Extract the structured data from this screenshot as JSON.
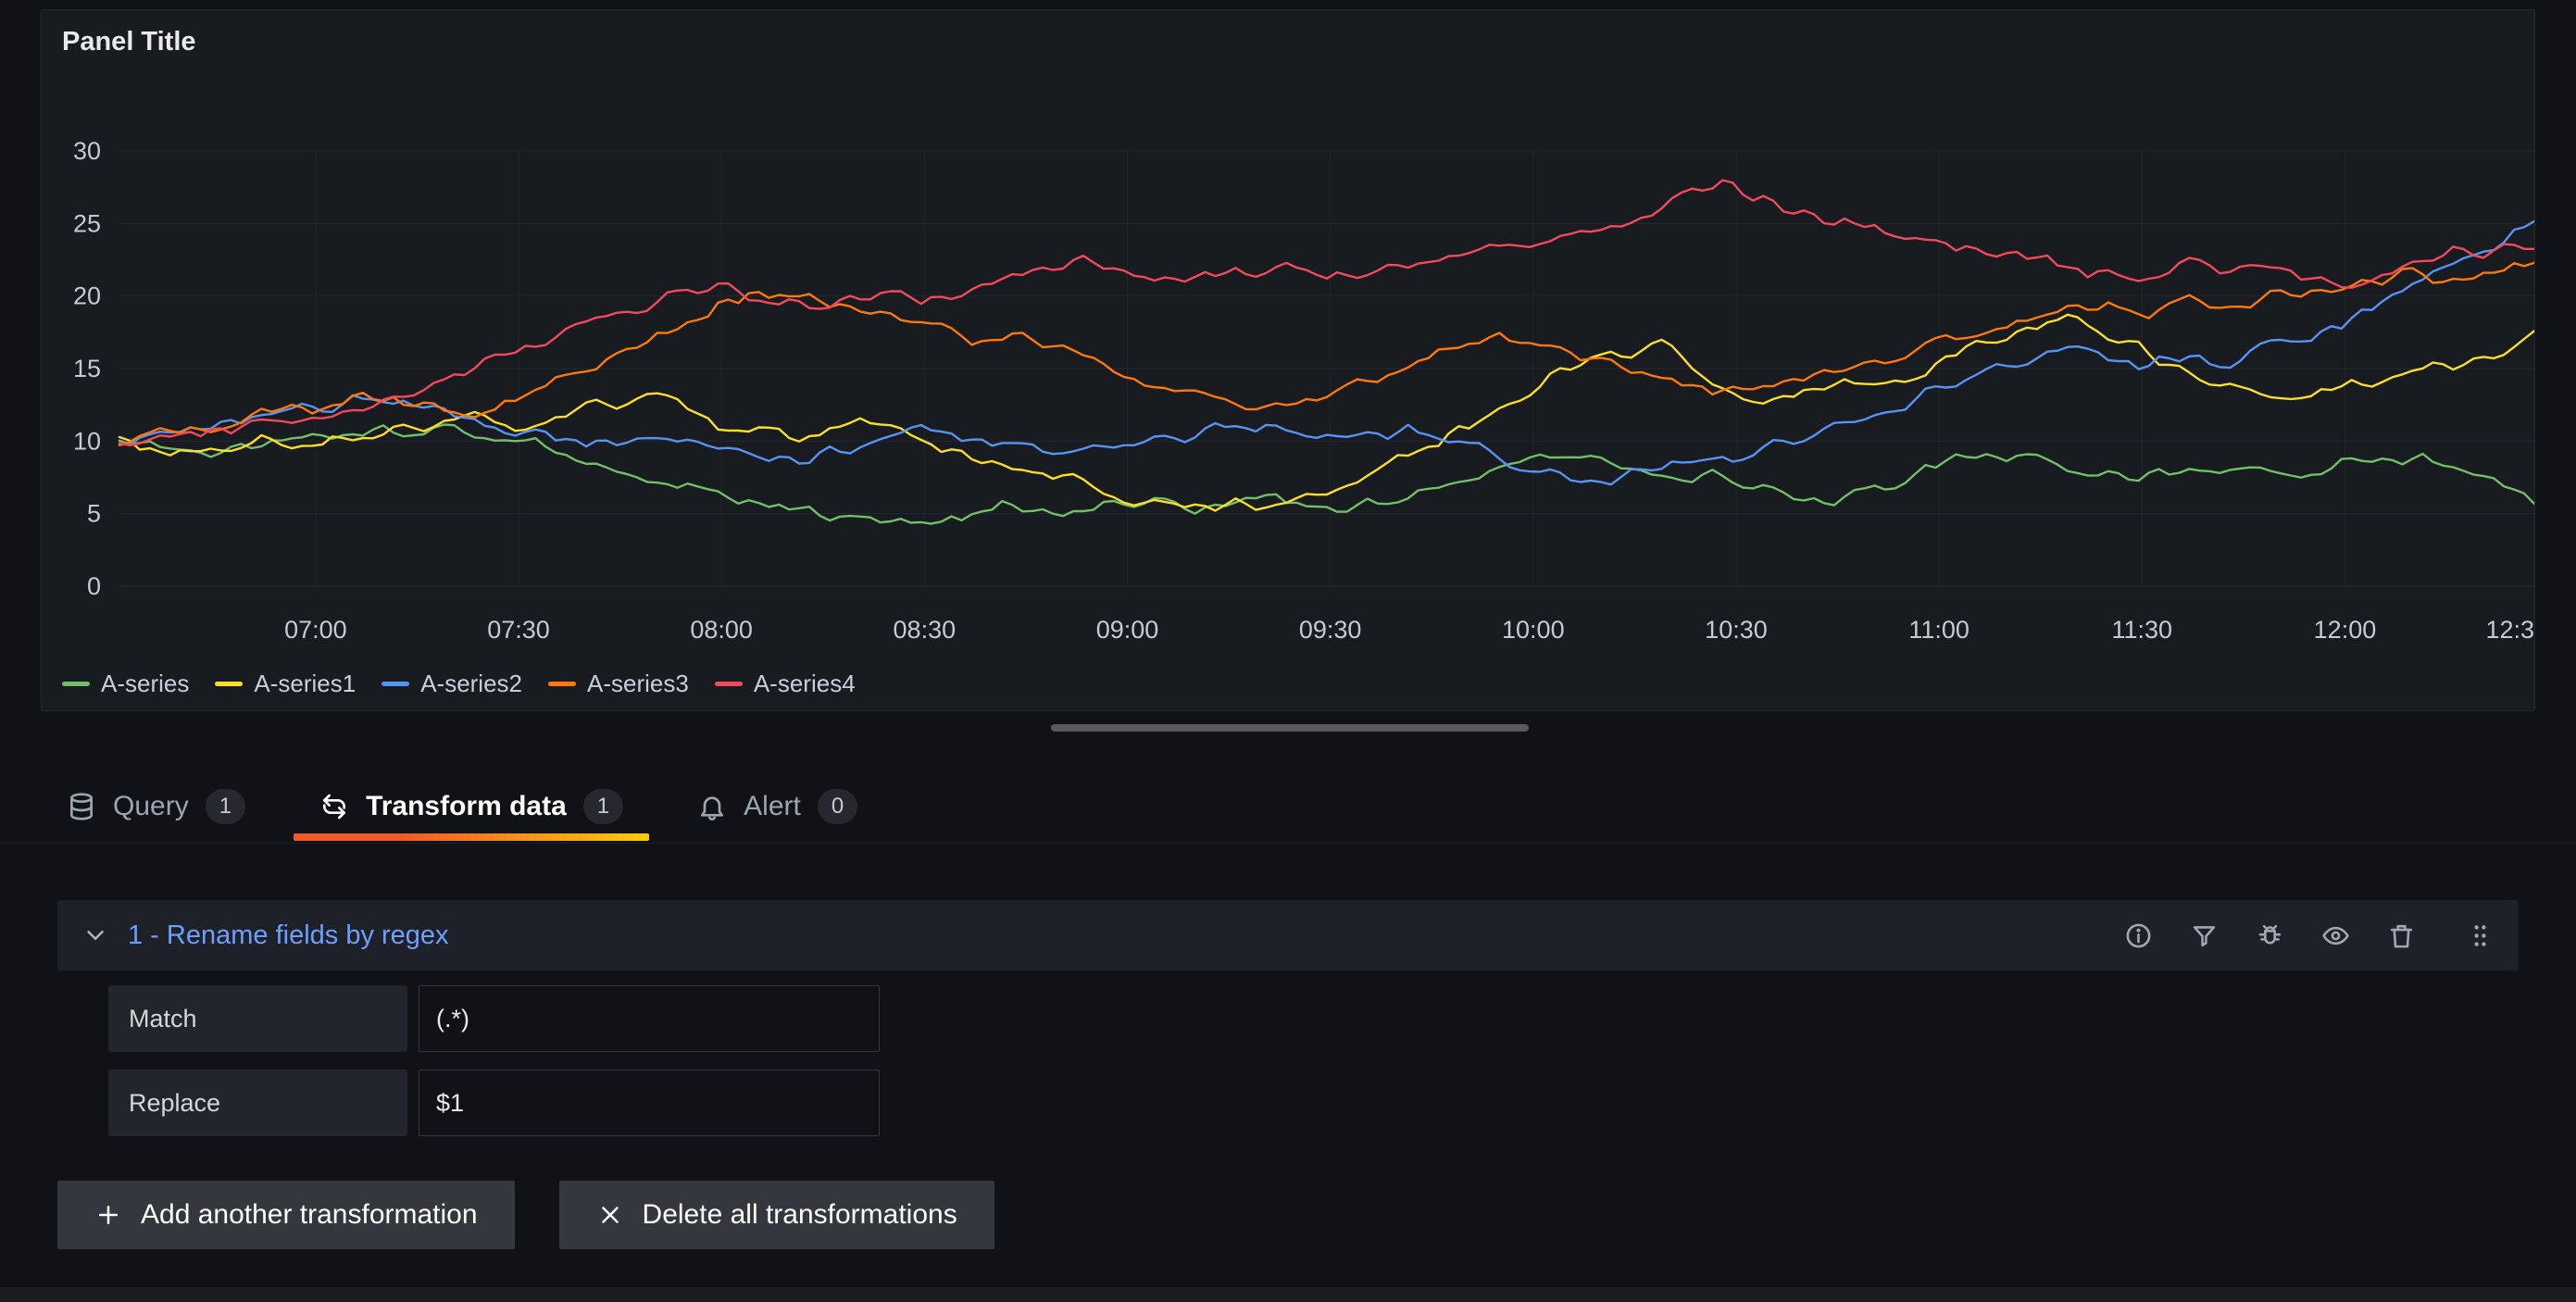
{
  "panel": {
    "title": "Panel Title"
  },
  "chart_data": {
    "type": "line",
    "title": "",
    "t_range": [
      0,
      357
    ],
    "y_range": [
      0,
      30
    ],
    "y_ticks": [
      0,
      5,
      10,
      15,
      20,
      25,
      30
    ],
    "x_ticks": [
      {
        "t": 29,
        "label": "07:00"
      },
      {
        "t": 59,
        "label": "07:30"
      },
      {
        "t": 89,
        "label": "08:00"
      },
      {
        "t": 119,
        "label": "08:30"
      },
      {
        "t": 149,
        "label": "09:00"
      },
      {
        "t": 179,
        "label": "09:30"
      },
      {
        "t": 209,
        "label": "10:00"
      },
      {
        "t": 239,
        "label": "10:30"
      },
      {
        "t": 269,
        "label": "11:00"
      },
      {
        "t": 299,
        "label": "11:30"
      },
      {
        "t": 329,
        "label": "12:00"
      },
      {
        "t": 359,
        "label": "12:3"
      }
    ],
    "grid": true,
    "legend_position": "bottom",
    "noise_amplitude": 0.6,
    "series": [
      {
        "name": "A-series",
        "color": "#73BF69",
        "anchors": [
          [
            0,
            10
          ],
          [
            15,
            9.2
          ],
          [
            29,
            10.3
          ],
          [
            45,
            10.8
          ],
          [
            59,
            10.2
          ],
          [
            70,
            8.5
          ],
          [
            80,
            7.0
          ],
          [
            89,
            6.2
          ],
          [
            100,
            5.2
          ],
          [
            110,
            4.6
          ],
          [
            119,
            4.1
          ],
          [
            130,
            5.6
          ],
          [
            140,
            5.2
          ],
          [
            149,
            5.8
          ],
          [
            160,
            5.2
          ],
          [
            170,
            6.3
          ],
          [
            179,
            5.4
          ],
          [
            190,
            6.1
          ],
          [
            200,
            7.6
          ],
          [
            209,
            8.8
          ],
          [
            215,
            9.2
          ],
          [
            225,
            8.0
          ],
          [
            239,
            7.4
          ],
          [
            250,
            5.6
          ],
          [
            260,
            6.4
          ],
          [
            269,
            8.6
          ],
          [
            280,
            9.0
          ],
          [
            290,
            7.8
          ],
          [
            299,
            7.4
          ],
          [
            310,
            8.2
          ],
          [
            320,
            7.6
          ],
          [
            329,
            8.4
          ],
          [
            340,
            8.8
          ],
          [
            348,
            7.6
          ],
          [
            353,
            7.2
          ],
          [
            357,
            5.9
          ]
        ]
      },
      {
        "name": "A-series1",
        "color": "#FADE2A",
        "anchors": [
          [
            0,
            10
          ],
          [
            10,
            8.8
          ],
          [
            20,
            10.2
          ],
          [
            29,
            9.6
          ],
          [
            40,
            10.4
          ],
          [
            50,
            11.8
          ],
          [
            59,
            10.6
          ],
          [
            70,
            12.4
          ],
          [
            80,
            13.2
          ],
          [
            89,
            11.0
          ],
          [
            100,
            10.2
          ],
          [
            110,
            11.4
          ],
          [
            119,
            10.0
          ],
          [
            130,
            8.4
          ],
          [
            140,
            7.6
          ],
          [
            149,
            6.0
          ],
          [
            158,
            5.4
          ],
          [
            165,
            5.8
          ],
          [
            172,
            5.2
          ],
          [
            179,
            6.4
          ],
          [
            190,
            8.8
          ],
          [
            200,
            11.4
          ],
          [
            209,
            13.6
          ],
          [
            218,
            15.6
          ],
          [
            228,
            16.4
          ],
          [
            239,
            13.4
          ],
          [
            245,
            13.0
          ],
          [
            255,
            14.4
          ],
          [
            262,
            13.8
          ],
          [
            269,
            15.4
          ],
          [
            280,
            17.6
          ],
          [
            288,
            18.8
          ],
          [
            299,
            16.2
          ],
          [
            308,
            14.4
          ],
          [
            315,
            13.6
          ],
          [
            322,
            13.2
          ],
          [
            329,
            13.8
          ],
          [
            338,
            14.6
          ],
          [
            345,
            15.4
          ],
          [
            352,
            16.2
          ],
          [
            357,
            17.6
          ]
        ]
      },
      {
        "name": "A-series2",
        "color": "#5794F2",
        "anchors": [
          [
            0,
            10
          ],
          [
            10,
            10.8
          ],
          [
            20,
            11.6
          ],
          [
            29,
            12.4
          ],
          [
            38,
            13.0
          ],
          [
            45,
            12.2
          ],
          [
            52,
            11.4
          ],
          [
            59,
            10.6
          ],
          [
            70,
            9.8
          ],
          [
            80,
            10.4
          ],
          [
            89,
            9.4
          ],
          [
            100,
            8.8
          ],
          [
            110,
            9.6
          ],
          [
            119,
            10.6
          ],
          [
            130,
            10.0
          ],
          [
            140,
            9.2
          ],
          [
            149,
            9.8
          ],
          [
            160,
            10.6
          ],
          [
            170,
            11.2
          ],
          [
            179,
            10.4
          ],
          [
            190,
            10.8
          ],
          [
            200,
            9.6
          ],
          [
            209,
            8.0
          ],
          [
            218,
            7.2
          ],
          [
            228,
            8.4
          ],
          [
            239,
            8.8
          ],
          [
            248,
            10.2
          ],
          [
            258,
            11.4
          ],
          [
            269,
            13.6
          ],
          [
            278,
            15.0
          ],
          [
            288,
            16.2
          ],
          [
            299,
            15.2
          ],
          [
            305,
            16.0
          ],
          [
            312,
            15.4
          ],
          [
            318,
            16.6
          ],
          [
            325,
            17.4
          ],
          [
            332,
            19.0
          ],
          [
            340,
            21.0
          ],
          [
            348,
            22.6
          ],
          [
            353,
            23.8
          ],
          [
            357,
            25.2
          ]
        ]
      },
      {
        "name": "A-series3",
        "color": "#FF780A",
        "anchors": [
          [
            0,
            10
          ],
          [
            10,
            10.6
          ],
          [
            20,
            11.8
          ],
          [
            29,
            12.2
          ],
          [
            38,
            13.0
          ],
          [
            45,
            12.4
          ],
          [
            52,
            11.6
          ],
          [
            59,
            12.8
          ],
          [
            68,
            14.6
          ],
          [
            76,
            16.4
          ],
          [
            84,
            18.2
          ],
          [
            89,
            19.6
          ],
          [
            95,
            20.4
          ],
          [
            102,
            19.8
          ],
          [
            110,
            19.2
          ],
          [
            119,
            18.4
          ],
          [
            126,
            16.8
          ],
          [
            134,
            17.4
          ],
          [
            142,
            15.8
          ],
          [
            149,
            14.6
          ],
          [
            156,
            13.4
          ],
          [
            164,
            12.6
          ],
          [
            172,
            12.2
          ],
          [
            179,
            13.2
          ],
          [
            188,
            14.8
          ],
          [
            196,
            16.4
          ],
          [
            204,
            17.2
          ],
          [
            209,
            16.6
          ],
          [
            216,
            15.8
          ],
          [
            225,
            14.6
          ],
          [
            232,
            13.8
          ],
          [
            239,
            13.2
          ],
          [
            248,
            14.2
          ],
          [
            256,
            15.4
          ],
          [
            264,
            16.2
          ],
          [
            269,
            16.8
          ],
          [
            278,
            17.6
          ],
          [
            288,
            18.8
          ],
          [
            295,
            19.4
          ],
          [
            299,
            18.6
          ],
          [
            306,
            19.8
          ],
          [
            312,
            18.8
          ],
          [
            320,
            20.2
          ],
          [
            329,
            20.8
          ],
          [
            338,
            21.6
          ],
          [
            346,
            20.8
          ],
          [
            352,
            21.8
          ],
          [
            357,
            22.2
          ]
        ]
      },
      {
        "name": "A-series4",
        "color": "#F2495C",
        "anchors": [
          [
            0,
            10
          ],
          [
            10,
            10.4
          ],
          [
            20,
            11.2
          ],
          [
            29,
            11.8
          ],
          [
            38,
            12.6
          ],
          [
            45,
            13.4
          ],
          [
            52,
            14.8
          ],
          [
            59,
            16.2
          ],
          [
            68,
            17.8
          ],
          [
            76,
            19.2
          ],
          [
            84,
            20.2
          ],
          [
            89,
            20.6
          ],
          [
            96,
            20.0
          ],
          [
            104,
            19.6
          ],
          [
            110,
            20.2
          ],
          [
            119,
            19.8
          ],
          [
            126,
            20.6
          ],
          [
            134,
            21.8
          ],
          [
            142,
            22.6
          ],
          [
            149,
            21.8
          ],
          [
            156,
            21.2
          ],
          [
            164,
            21.6
          ],
          [
            172,
            22.0
          ],
          [
            179,
            21.4
          ],
          [
            188,
            21.8
          ],
          [
            196,
            22.4
          ],
          [
            204,
            23.2
          ],
          [
            209,
            23.6
          ],
          [
            216,
            24.2
          ],
          [
            222,
            25.0
          ],
          [
            228,
            26.2
          ],
          [
            233,
            27.4
          ],
          [
            237,
            27.8
          ],
          [
            242,
            26.8
          ],
          [
            248,
            25.8
          ],
          [
            254,
            25.2
          ],
          [
            260,
            24.6
          ],
          [
            269,
            23.8
          ],
          [
            276,
            23.2
          ],
          [
            284,
            22.4
          ],
          [
            290,
            21.8
          ],
          [
            299,
            21.4
          ],
          [
            305,
            22.2
          ],
          [
            311,
            21.6
          ],
          [
            318,
            22.4
          ],
          [
            324,
            21.2
          ],
          [
            329,
            20.6
          ],
          [
            336,
            21.8
          ],
          [
            343,
            22.8
          ],
          [
            350,
            23.2
          ],
          [
            357,
            23.4
          ]
        ]
      }
    ]
  },
  "tabs": [
    {
      "label": "Query",
      "count": "1",
      "icon": "database-icon",
      "active": false
    },
    {
      "label": "Transform data",
      "count": "1",
      "icon": "transform-icon",
      "active": true
    },
    {
      "label": "Alert",
      "count": "0",
      "icon": "bell-icon",
      "active": false
    }
  ],
  "transform": {
    "header": {
      "title": "1 - Rename fields by regex",
      "collapse_icon": "chevron-down-icon",
      "action_icons": [
        "info-icon",
        "filter-icon",
        "bug-icon",
        "eye-icon",
        "trash-icon",
        "drag-handle-icon"
      ]
    },
    "fields": [
      {
        "label": "Match",
        "value": "(.*)"
      },
      {
        "label": "Replace",
        "value": "$1"
      }
    ],
    "buttons": [
      {
        "icon": "plus-icon",
        "label": "Add another transformation"
      },
      {
        "icon": "close-icon",
        "label": "Delete all transformations"
      }
    ]
  },
  "colors": {
    "page_background": "#111217",
    "panel_background": "#181b20",
    "active_tab_gradient_start": "#F05A28",
    "active_tab_gradient_end": "#FBCA0A",
    "link_blue": "#6E9FFF"
  }
}
